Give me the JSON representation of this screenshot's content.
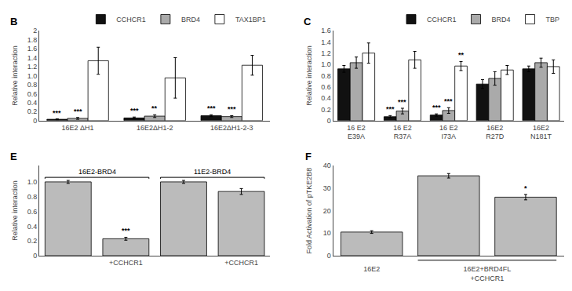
{
  "chart_data": [
    {
      "type": "bar",
      "title": "B",
      "categories": [
        "16E2 ΔH1",
        "16E2ΔH1-2",
        "16E2ΔH1-2-3"
      ],
      "series": [
        {
          "name": "CCHCR1",
          "color": "#111111",
          "values": [
            0.03,
            0.06,
            0.11
          ],
          "errors": [
            0.01,
            0.02,
            0.02
          ],
          "annotations": [
            "***",
            "***",
            "***"
          ]
        },
        {
          "name": "BRD4",
          "color": "#aaaaaa",
          "values": [
            0.05,
            0.1,
            0.09
          ],
          "errors": [
            0.02,
            0.03,
            0.02
          ],
          "annotations": [
            "***",
            "**",
            "***"
          ]
        },
        {
          "name": "TAX1BP1",
          "color": "#ffffff",
          "values": [
            1.33,
            0.95,
            1.23
          ],
          "errors": [
            0.3,
            0.45,
            0.22
          ]
        }
      ],
      "ylabel": "Relative interaction",
      "ylim": [
        0,
        2.0
      ],
      "yticks": [
        0,
        0.2,
        0.4,
        0.6,
        0.8,
        {
          "value": 1.0,
          "label": "1.0"
        },
        1.2,
        1.4,
        1.6,
        1.8,
        2
      ],
      "legend": "upper right",
      "grid": false
    },
    {
      "type": "bar",
      "title": "C",
      "categories": [
        "16 E2\nE39A",
        "16 E2\nR37A",
        "16 E2\nI73A",
        "16E2\nR27D",
        "16E2\nN181T"
      ],
      "series": [
        {
          "name": "CCHCR1",
          "color": "#111111",
          "values": [
            0.92,
            0.07,
            0.1,
            0.65,
            0.92
          ],
          "errors": [
            0.06,
            0.02,
            0.02,
            0.08,
            0.05
          ],
          "annotations": [
            null,
            "***",
            "***",
            null,
            null
          ]
        },
        {
          "name": "BRD4",
          "color": "#aaaaaa",
          "values": [
            1.03,
            0.17,
            0.18,
            0.75,
            1.03
          ],
          "errors": [
            0.1,
            0.05,
            0.05,
            0.12,
            0.08
          ],
          "annotations": [
            null,
            "***",
            "***",
            null,
            null
          ]
        },
        {
          "name": "TBP",
          "color": "#ffffff",
          "values": [
            1.2,
            1.08,
            0.97,
            0.9,
            0.96
          ],
          "errors": [
            0.18,
            0.15,
            0.08,
            0.08,
            0.12
          ],
          "annotations": [
            null,
            null,
            "**",
            null,
            null
          ]
        }
      ],
      "ylabel": "Relative interaction",
      "ylim": [
        0,
        1.6
      ],
      "yticks": [
        0,
        0.2,
        0.4,
        0.6,
        0.8,
        {
          "value": 1.0,
          "label": "1.0"
        },
        1.2,
        1.4,
        1.6
      ],
      "legend": "upper right",
      "grid": false
    },
    {
      "type": "bar",
      "title": "E",
      "categories": [
        null,
        "+CCHCR1",
        null,
        "+CCHCR1"
      ],
      "groups": [
        "16E2-BRD4",
        "16E2-BRD4",
        "11E2-BRD4",
        "11E2-BRD4"
      ],
      "values": [
        1.0,
        0.23,
        1.0,
        0.87
      ],
      "errors": [
        0.02,
        0.02,
        0.02,
        0.04
      ],
      "annotations": [
        null,
        "***",
        null,
        null
      ],
      "color": "#bbbbbb",
      "ylabel": "Relative interaction",
      "ylim": [
        0,
        1.22
      ],
      "yticks": [
        0,
        0.2,
        0.4,
        0.6,
        0.8,
        {
          "value": 1.0,
          "label": "1.0"
        }
      ],
      "grid": false
    },
    {
      "type": "bar",
      "title": "F",
      "categories": [
        "16E2",
        "16E2+BRD4FL\n+CCHCR1",
        "16E2+BRD4FL\n+CCHCR1"
      ],
      "values": [
        10.5,
        35.5,
        26.0
      ],
      "errors": [
        0.6,
        1.0,
        1.2
      ],
      "annotations": [
        null,
        null,
        "*"
      ],
      "color": "#bbbbbb",
      "ylabel": "Fold Activation of pTKE2B8",
      "ylim": [
        0,
        40
      ],
      "yticks": [
        0,
        10,
        20,
        30,
        40
      ],
      "grid": false
    }
  ]
}
